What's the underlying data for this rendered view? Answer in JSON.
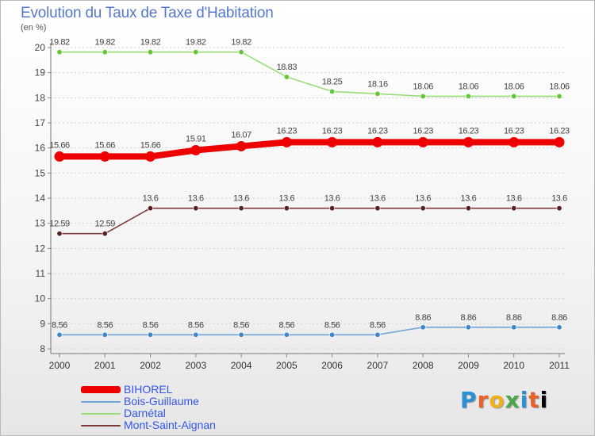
{
  "chart_data": {
    "type": "line",
    "title": "Evolution du Taux de Taxe d'Habitation",
    "subtitle": "(en %)",
    "categories": [
      "2000",
      "2001",
      "2002",
      "2003",
      "2004",
      "2005",
      "2006",
      "2007",
      "2008",
      "2009",
      "2010",
      "2011"
    ],
    "ylim": [
      8,
      20
    ],
    "yticks": [
      8,
      9,
      10,
      11,
      12,
      13,
      14,
      15,
      16,
      17,
      18,
      19,
      20
    ],
    "grid": "horizontal dashed",
    "legend_position": "bottom-left",
    "series": [
      {
        "name": "BIHOREL",
        "color": "#ee0000",
        "marker_color": "#ee0000",
        "emphasis": "thick",
        "values": [
          15.66,
          15.66,
          15.66,
          15.91,
          16.07,
          16.23,
          16.23,
          16.23,
          16.23,
          16.23,
          16.23,
          16.23
        ],
        "labels": [
          "15.66",
          "15.66",
          "15.66",
          "15.91",
          "16.07",
          "16.23",
          "16.23",
          "16.23",
          "16.23",
          "16.23",
          "16.23",
          "16.23"
        ]
      },
      {
        "name": "Bois-Guillaume",
        "color": "#6fa4d8",
        "marker_color": "#3d86c8",
        "emphasis": "thin",
        "values": [
          8.56,
          8.56,
          8.56,
          8.56,
          8.56,
          8.56,
          8.56,
          8.56,
          8.86,
          8.86,
          8.86,
          8.86
        ],
        "labels": [
          "8.56",
          "8.56",
          "8.56",
          "8.56",
          "8.56",
          "8.56",
          "8.56",
          "8.56",
          "8.86",
          "8.86",
          "8.86",
          "8.86"
        ]
      },
      {
        "name": "Darnétal",
        "color": "#99dd77",
        "marker_color": "#66c63a",
        "emphasis": "thin",
        "values": [
          19.82,
          19.82,
          19.82,
          19.82,
          19.82,
          18.83,
          18.25,
          18.16,
          18.06,
          18.06,
          18.06,
          18.06
        ],
        "labels": [
          "19.82",
          "19.82",
          "19.82",
          "19.82",
          "19.82",
          "18.83",
          "18.25",
          "18.16",
          "18.06",
          "18.06",
          "18.06",
          "18.06"
        ]
      },
      {
        "name": "Mont-Saint-Aignan",
        "color": "#7a3a3a",
        "marker_color": "#5a1f1f",
        "emphasis": "thin",
        "values": [
          12.59,
          12.59,
          13.6,
          13.6,
          13.6,
          13.6,
          13.6,
          13.6,
          13.6,
          13.6,
          13.6,
          13.6
        ],
        "labels": [
          "12.59",
          "12.59",
          "13.6",
          "13.6",
          "13.6",
          "13.6",
          "13.6",
          "13.6",
          "13.6",
          "13.6",
          "13.6",
          "13.6"
        ]
      }
    ]
  },
  "logo": {
    "letters": [
      "P",
      "r",
      "o",
      "x",
      "i",
      "t",
      "i"
    ],
    "text": "Proxiti"
  }
}
